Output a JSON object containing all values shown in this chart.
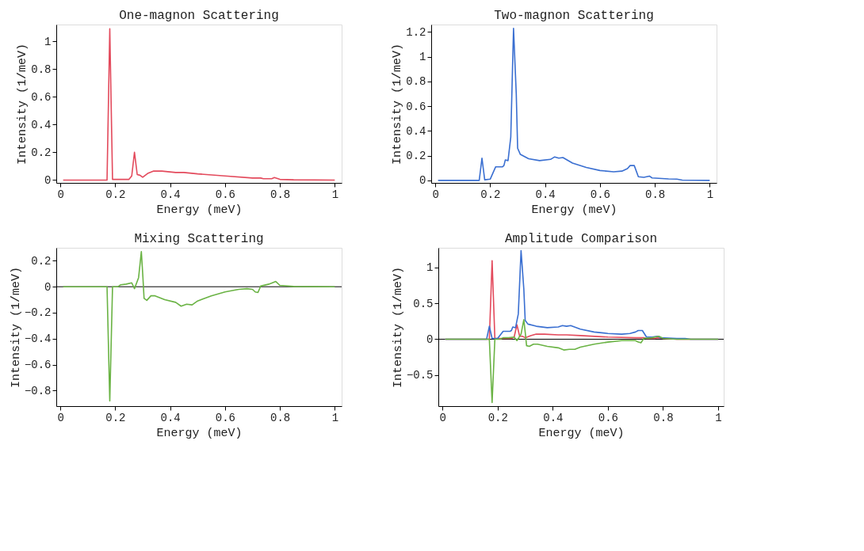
{
  "chart_data": [
    {
      "type": "line",
      "title": "One-magnon Scattering",
      "xlabel": "Energy (meV)",
      "ylabel": "Intensity (1/meV)",
      "xlim": [
        -0.015,
        1.025
      ],
      "ylim": [
        -0.02,
        1.12
      ],
      "xticks": [
        0,
        0.2,
        0.4,
        0.6,
        0.8,
        1
      ],
      "yticks": [
        0,
        0.2,
        0.4,
        0.6,
        0.8,
        1
      ],
      "grid": false,
      "legend": false,
      "line_style": "solid",
      "marker": "none",
      "series": [
        {
          "color": "#e34a5c",
          "x": [
            0.01,
            0.17,
            0.18,
            0.19,
            0.25,
            0.26,
            0.27,
            0.28,
            0.29,
            0.3,
            0.32,
            0.34,
            0.37,
            0.42,
            0.45,
            0.5,
            0.6,
            0.7,
            0.73,
            0.74,
            0.77,
            0.78,
            0.8,
            0.85,
            1.0
          ],
          "values": [
            0,
            0,
            1.09,
            0.005,
            0.005,
            0.03,
            0.2,
            0.04,
            0.035,
            0.02,
            0.05,
            0.065,
            0.065,
            0.055,
            0.055,
            0.045,
            0.03,
            0.015,
            0.015,
            0.01,
            0.01,
            0.018,
            0.005,
            0.002,
            0
          ]
        }
      ]
    },
    {
      "type": "line",
      "title": "Two-magnon Scattering",
      "xlabel": "Energy (meV)",
      "ylabel": "Intensity (1/meV)",
      "xlim": [
        -0.015,
        1.025
      ],
      "ylim": [
        -0.02,
        1.26
      ],
      "xticks": [
        0,
        0.2,
        0.4,
        0.6,
        0.8,
        1
      ],
      "yticks": [
        0,
        0.2,
        0.4,
        0.6,
        0.8,
        1,
        1.2
      ],
      "grid": false,
      "legend": false,
      "line_style": "solid",
      "marker": "none",
      "series": [
        {
          "color": "#3a6fd1",
          "x": [
            0.01,
            0.16,
            0.17,
            0.18,
            0.2,
            0.22,
            0.245,
            0.25,
            0.255,
            0.265,
            0.275,
            0.285,
            0.295,
            0.3,
            0.31,
            0.34,
            0.38,
            0.42,
            0.435,
            0.45,
            0.465,
            0.5,
            0.55,
            0.6,
            0.65,
            0.68,
            0.7,
            0.71,
            0.725,
            0.74,
            0.76,
            0.78,
            0.79,
            0.85,
            0.88,
            0.9,
            1.0
          ],
          "values": [
            0,
            0,
            0.18,
            0.005,
            0.01,
            0.11,
            0.11,
            0.12,
            0.165,
            0.16,
            0.35,
            1.23,
            0.7,
            0.26,
            0.21,
            0.175,
            0.16,
            0.17,
            0.19,
            0.18,
            0.185,
            0.14,
            0.105,
            0.08,
            0.07,
            0.075,
            0.095,
            0.12,
            0.12,
            0.03,
            0.025,
            0.035,
            0.02,
            0.012,
            0.01,
            0.002,
            0
          ]
        }
      ]
    },
    {
      "type": "line",
      "title": "Mixing Scattering",
      "xlabel": "Energy (meV)",
      "ylabel": "Intensity (1/meV)",
      "xlim": [
        -0.015,
        1.025
      ],
      "ylim": [
        -0.92,
        0.3
      ],
      "xticks": [
        0,
        0.2,
        0.4,
        0.6,
        0.8,
        1
      ],
      "yticks": [
        -0.8,
        -0.6,
        -0.4,
        -0.2,
        0,
        0.2
      ],
      "grid": false,
      "legend": false,
      "line_style": "solid",
      "marker": "none",
      "ref_lines": [
        {
          "axis": "y",
          "value": 0,
          "color": "#000000"
        }
      ],
      "series": [
        {
          "color": "#6ab344",
          "x": [
            0.01,
            0.17,
            0.18,
            0.19,
            0.21,
            0.22,
            0.24,
            0.26,
            0.27,
            0.285,
            0.295,
            0.3,
            0.305,
            0.315,
            0.33,
            0.345,
            0.38,
            0.42,
            0.44,
            0.46,
            0.48,
            0.5,
            0.55,
            0.6,
            0.65,
            0.68,
            0.7,
            0.71,
            0.72,
            0.73,
            0.76,
            0.785,
            0.8,
            0.85,
            1.0
          ],
          "values": [
            0,
            0,
            -0.88,
            0,
            0,
            0.015,
            0.02,
            0.03,
            -0.015,
            0.07,
            0.27,
            0.1,
            -0.09,
            -0.105,
            -0.07,
            -0.07,
            -0.1,
            -0.12,
            -0.15,
            -0.135,
            -0.14,
            -0.11,
            -0.07,
            -0.04,
            -0.02,
            -0.015,
            -0.02,
            -0.04,
            -0.045,
            0.005,
            0.02,
            0.04,
            0.01,
            0.002,
            0
          ]
        }
      ]
    },
    {
      "type": "line",
      "title": "Amplitude Comparison",
      "xlabel": "Energy (meV)",
      "ylabel": "Intensity (1/meV)",
      "xlim": [
        -0.015,
        1.02
      ],
      "ylim": [
        -0.93,
        1.27
      ],
      "xticks": [
        0,
        0.2,
        0.4,
        0.6,
        0.8,
        1
      ],
      "yticks": [
        -0.5,
        0,
        0.5,
        1
      ],
      "grid": false,
      "legend": false,
      "line_style": "solid",
      "marker": "none",
      "ref_lines": [
        {
          "axis": "y",
          "value": 0,
          "color": "#000000"
        }
      ],
      "series": [
        {
          "color": "#e34a5c",
          "x": [
            0.01,
            0.17,
            0.18,
            0.19,
            0.25,
            0.26,
            0.27,
            0.28,
            0.29,
            0.3,
            0.32,
            0.34,
            0.37,
            0.42,
            0.45,
            0.5,
            0.6,
            0.7,
            0.73,
            0.74,
            0.77,
            0.78,
            0.8,
            0.85,
            1.0
          ],
          "values": [
            0,
            0,
            1.09,
            0.01,
            0.01,
            0.03,
            0.2,
            0.04,
            0.04,
            0.02,
            0.05,
            0.07,
            0.07,
            0.06,
            0.06,
            0.05,
            0.03,
            0.02,
            0.02,
            0.01,
            0.01,
            0.02,
            0.01,
            0,
            0
          ]
        },
        {
          "color": "#3a6fd1",
          "x": [
            0.01,
            0.16,
            0.17,
            0.18,
            0.2,
            0.22,
            0.245,
            0.25,
            0.255,
            0.265,
            0.275,
            0.285,
            0.295,
            0.3,
            0.31,
            0.34,
            0.38,
            0.42,
            0.435,
            0.45,
            0.465,
            0.5,
            0.55,
            0.6,
            0.65,
            0.68,
            0.7,
            0.71,
            0.725,
            0.74,
            0.76,
            0.78,
            0.79,
            0.85,
            0.88,
            0.9,
            1.0
          ],
          "values": [
            0,
            0,
            0.18,
            0.01,
            0.01,
            0.11,
            0.11,
            0.12,
            0.17,
            0.16,
            0.35,
            1.23,
            0.7,
            0.26,
            0.21,
            0.18,
            0.16,
            0.17,
            0.19,
            0.18,
            0.19,
            0.14,
            0.1,
            0.08,
            0.07,
            0.08,
            0.1,
            0.12,
            0.12,
            0.03,
            0.03,
            0.04,
            0.02,
            0.01,
            0.01,
            0,
            0
          ]
        },
        {
          "color": "#6ab344",
          "x": [
            0.01,
            0.17,
            0.18,
            0.19,
            0.21,
            0.22,
            0.24,
            0.26,
            0.27,
            0.285,
            0.295,
            0.3,
            0.305,
            0.315,
            0.33,
            0.345,
            0.38,
            0.42,
            0.44,
            0.46,
            0.48,
            0.5,
            0.55,
            0.6,
            0.65,
            0.68,
            0.7,
            0.71,
            0.72,
            0.73,
            0.76,
            0.785,
            0.8,
            0.85,
            1.0
          ],
          "values": [
            0,
            0,
            -0.88,
            0,
            0,
            0.02,
            0.02,
            0.03,
            -0.02,
            0.07,
            0.27,
            0.1,
            -0.09,
            -0.1,
            -0.07,
            -0.07,
            -0.1,
            -0.12,
            -0.15,
            -0.14,
            -0.14,
            -0.11,
            -0.07,
            -0.04,
            -0.02,
            -0.02,
            -0.02,
            -0.04,
            -0.05,
            0.01,
            0.02,
            0.04,
            0.01,
            0,
            0
          ]
        }
      ]
    }
  ]
}
